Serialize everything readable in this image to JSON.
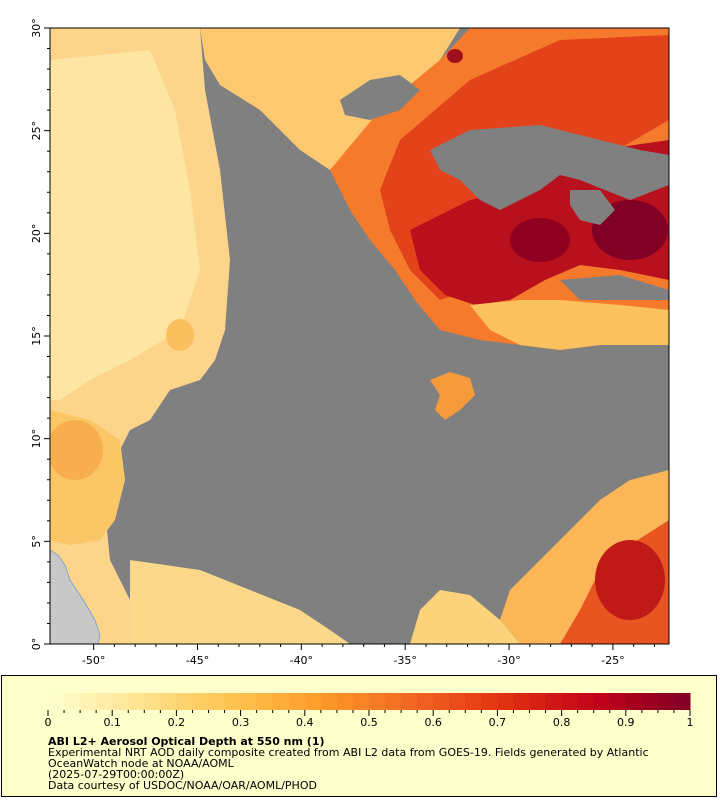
{
  "map": {
    "x_ticks": [
      {
        "lon": -50,
        "label": "-50°"
      },
      {
        "lon": -45,
        "label": "-45°"
      },
      {
        "lon": -40,
        "label": "-40°"
      },
      {
        "lon": -35,
        "label": "-35°"
      },
      {
        "lon": -30,
        "label": "-30°"
      },
      {
        "lon": -25,
        "label": "-25°"
      }
    ],
    "y_ticks": [
      {
        "lat": 0,
        "label": "0°"
      },
      {
        "lat": 5,
        "label": "5°"
      },
      {
        "lat": 10,
        "label": "10°"
      },
      {
        "lat": 15,
        "label": "15°"
      },
      {
        "lat": 20,
        "label": "20°"
      },
      {
        "lat": 25,
        "label": "25°"
      },
      {
        "lat": 30,
        "label": "30°"
      }
    ],
    "lon_range": [
      -52.1,
      -22.3
    ],
    "lat_range": [
      0,
      30
    ],
    "no_data_color": "#808080",
    "land_color": "#c8c8c8"
  },
  "colorbar": {
    "tick_labels": [
      "0",
      "0.1",
      "0.2",
      "0.3",
      "0.4",
      "0.5",
      "0.6",
      "0.7",
      "0.8",
      "0.9",
      "1"
    ],
    "range": [
      0,
      1
    ],
    "colors": [
      "#ffffd0",
      "#fee391",
      "#fec44f",
      "#fe9929",
      "#f26522",
      "#e03010",
      "#c0001a",
      "#800026"
    ]
  },
  "legend": {
    "title": "ABI L2+ Aerosol Optical Depth at 550 nm (1)",
    "description": "Experimental NRT AOD daily composite created from ABI L2 data from GOES-19. Fields generated by Atlantic OceanWatch node at NOAA/AOML",
    "date": "(2025-07-29T00:00:00Z)",
    "credit": "Data courtesy of USDOC/NOAA/OAR/AOML/PHOD"
  }
}
